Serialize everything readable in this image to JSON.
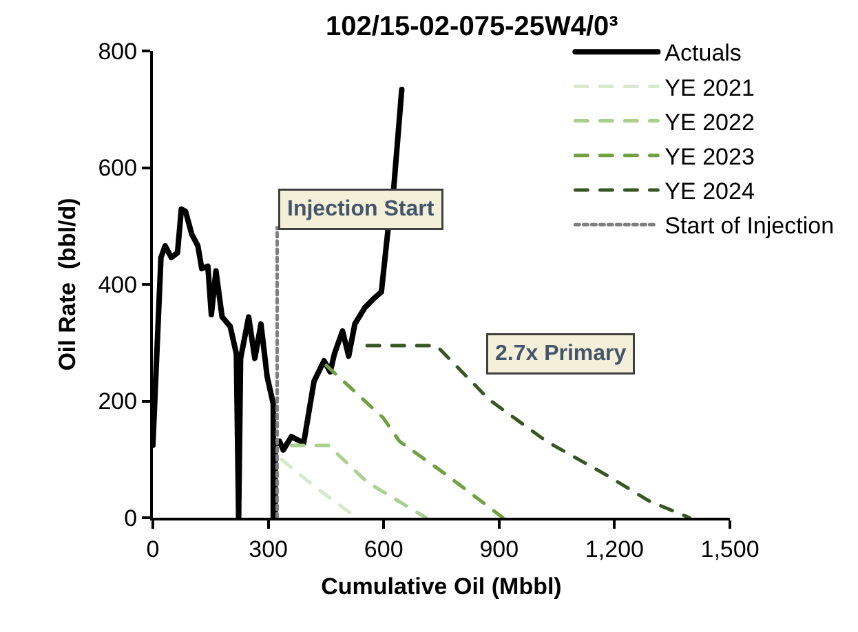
{
  "chart_data": {
    "type": "line",
    "title": "102/15-02-075-25W4/0³",
    "xlabel": "Cumulative Oil (Mbbl)",
    "ylabel": "Oil Rate  (bbl/d)",
    "xlim": [
      0,
      1500
    ],
    "ylim": [
      0,
      800
    ],
    "xticks": [
      0,
      300,
      600,
      900,
      {
        "value": 1200,
        "label": "1,200"
      },
      {
        "value": 1500,
        "label": "1,500"
      }
    ],
    "yticks": [
      0,
      200,
      400,
      600,
      800
    ],
    "grid": false,
    "legend": "top right",
    "marker": "none",
    "series": [
      {
        "name": "Actuals",
        "color": "#000000",
        "line_style": "solid",
        "x": [
          0,
          21,
          32,
          48,
          64,
          74,
          85,
          101,
          117,
          127,
          143,
          152,
          164,
          180,
          201,
          217,
          223,
          228,
          249,
          265,
          281,
          297,
          313,
          313,
          318,
          318,
          329,
          339,
          360,
          392,
          419,
          445,
          461,
          472,
          493,
          509,
          525,
          551,
          573,
          594,
          610,
          626,
          647
        ],
        "values": [
          124,
          446,
          466,
          446,
          454,
          529,
          525,
          486,
          466,
          427,
          431,
          348,
          423,
          344,
          328,
          281,
          0,
          273,
          344,
          273,
          332,
          242,
          195,
          0,
          0,
          124,
          131,
          116,
          139,
          128,
          234,
          269,
          250,
          281,
          320,
          277,
          332,
          360,
          375,
          387,
          486,
          564,
          734
        ]
      },
      {
        "name": "YE 2021",
        "color": "#d9e8cc",
        "line_style": "dashed",
        "x": [
          334,
          429,
          530
        ],
        "values": [
          100,
          49,
          0
        ]
      },
      {
        "name": "YE 2022",
        "color": "#a9d08e",
        "line_style": "dashed",
        "x": [
          360,
          456,
          557,
          710
        ],
        "values": [
          124,
          124,
          61,
          0
        ]
      },
      {
        "name": "YE 2023",
        "color": "#70a040",
        "line_style": "dashed",
        "x": [
          451,
          599,
          641,
          758,
          910
        ],
        "values": [
          261,
          171,
          131,
          76,
          0
        ]
      },
      {
        "name": "YE 2024",
        "color": "#375623",
        "line_style": "dashed",
        "x": [
          557,
          737,
          875,
          1023,
          1182,
          1289,
          1395
        ],
        "values": [
          295,
          295,
          202,
          131,
          72,
          29,
          0
        ]
      },
      {
        "name": "Start of Injection",
        "color": "#7f7f7f",
        "line_style": "dotted",
        "x": [
          323,
          323
        ],
        "values": [
          0,
          497
        ]
      }
    ],
    "annotations": [
      "Injection Start",
      "2.7x Primary"
    ]
  }
}
